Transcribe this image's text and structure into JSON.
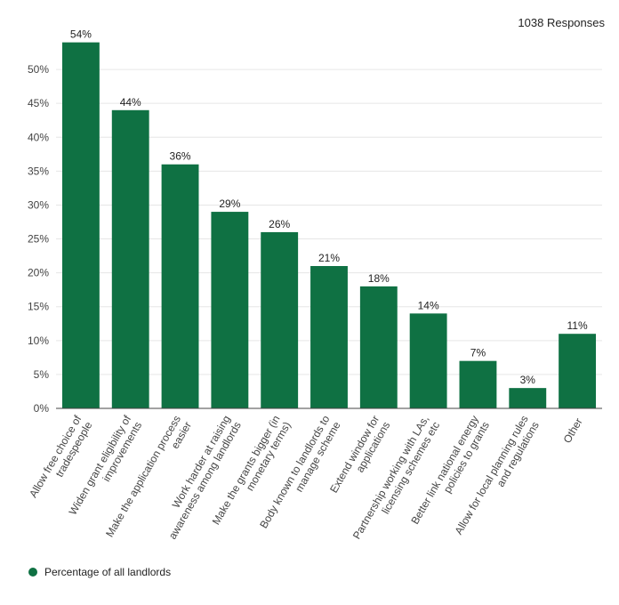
{
  "responses_label": "1038 Responses",
  "chart_data": {
    "type": "bar",
    "categories": [
      [
        "Allow free choice of",
        "tradespeople"
      ],
      [
        "Widen grant eligibility of",
        "improvements"
      ],
      [
        "Make the application process",
        "easier"
      ],
      [
        "Work harder at raising",
        "awareness among landlords"
      ],
      [
        "Make the grants bigger (in",
        "monetary terms)"
      ],
      [
        "Body known to landlords to",
        "manage scheme"
      ],
      [
        "Extend window for",
        "applications"
      ],
      [
        "Partnership working with LAs,",
        "licensing schemes etc"
      ],
      [
        "Better link national energy",
        "policies to grants"
      ],
      [
        "Allow for local planning rules",
        "and regulations"
      ],
      [
        "Other"
      ]
    ],
    "series": [
      {
        "name": "Percentage of all landlords",
        "values": [
          54,
          44,
          36,
          29,
          26,
          21,
          18,
          14,
          7,
          3,
          11
        ],
        "labels": [
          "54%",
          "44%",
          "36%",
          "29%",
          "26%",
          "21%",
          "18%",
          "14%",
          "7%",
          "3%",
          "11%"
        ]
      }
    ],
    "yticks": [
      0,
      5,
      10,
      15,
      20,
      25,
      30,
      35,
      40,
      45,
      50
    ],
    "ytick_labels": [
      "0%",
      "5%",
      "10%",
      "15%",
      "20%",
      "25%",
      "30%",
      "35%",
      "40%",
      "45%",
      "50%"
    ],
    "ylim": [
      0,
      55
    ],
    "grid": true,
    "legend_position": "bottom-left",
    "colors": {
      "bar": "#0f7143",
      "grid": "#e6e6e6",
      "axis": "#444444"
    }
  }
}
